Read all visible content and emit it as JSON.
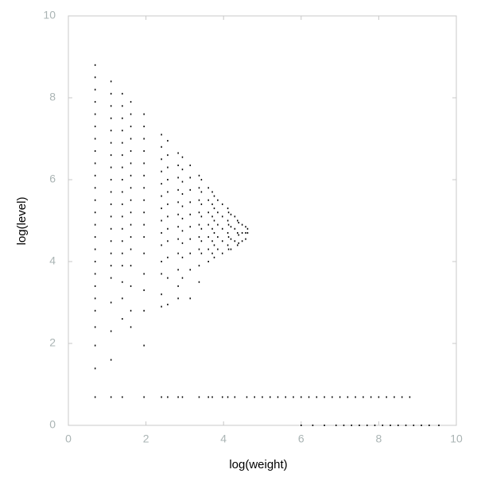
{
  "chart_data": {
    "type": "scatter",
    "xlabel": "log(weight)",
    "ylabel": "log(level)",
    "color": "#000000",
    "xlim": [
      0,
      10
    ],
    "ylim": [
      0,
      10
    ],
    "xticks": [
      0,
      2,
      4,
      6,
      8,
      10
    ],
    "yticks": [
      0,
      2,
      4,
      6,
      8,
      10
    ],
    "grid": false,
    "x": [
      0.69,
      0.69,
      0.69,
      0.69,
      0.69,
      0.69,
      0.69,
      0.69,
      0.69,
      0.69,
      0.69,
      0.69,
      0.69,
      0.69,
      0.69,
      0.69,
      0.69,
      0.69,
      0.69,
      0.69,
      0.69,
      0.69,
      0.69,
      0.69,
      0.69,
      1.1,
      1.1,
      1.1,
      1.1,
      1.1,
      1.1,
      1.1,
      1.1,
      1.1,
      1.1,
      1.1,
      1.1,
      1.1,
      1.1,
      1.1,
      1.1,
      1.1,
      1.1,
      1.1,
      1.1,
      1.1,
      1.39,
      1.39,
      1.39,
      1.39,
      1.39,
      1.39,
      1.39,
      1.39,
      1.39,
      1.39,
      1.39,
      1.39,
      1.39,
      1.39,
      1.39,
      1.39,
      1.39,
      1.39,
      1.39,
      1.61,
      1.61,
      1.61,
      1.61,
      1.61,
      1.61,
      1.61,
      1.61,
      1.61,
      1.61,
      1.61,
      1.61,
      1.61,
      1.61,
      1.61,
      1.61,
      1.61,
      1.95,
      1.95,
      1.95,
      1.95,
      1.95,
      1.95,
      1.95,
      1.95,
      1.95,
      1.95,
      1.95,
      1.95,
      1.95,
      1.95,
      1.95,
      1.95,
      1.95,
      2.4,
      2.4,
      2.4,
      2.4,
      2.4,
      2.4,
      2.4,
      2.4,
      2.4,
      2.4,
      2.4,
      2.4,
      2.4,
      2.4,
      2.4,
      2.56,
      2.56,
      2.56,
      2.56,
      2.56,
      2.56,
      2.56,
      2.56,
      2.56,
      2.56,
      2.56,
      2.56,
      2.56,
      2.83,
      2.83,
      2.83,
      2.83,
      2.83,
      2.83,
      2.83,
      2.83,
      2.83,
      2.83,
      2.83,
      2.83,
      2.83,
      2.94,
      2.94,
      2.94,
      2.94,
      2.94,
      2.94,
      2.94,
      2.94,
      2.94,
      2.94,
      2.94,
      3.14,
      3.14,
      3.14,
      3.14,
      3.14,
      3.14,
      3.14,
      3.14,
      3.14,
      3.14,
      3.37,
      3.37,
      3.37,
      3.37,
      3.37,
      3.37,
      3.37,
      3.37,
      3.37,
      3.37,
      3.43,
      3.43,
      3.43,
      3.43,
      3.43,
      3.43,
      3.43,
      3.61,
      3.61,
      3.61,
      3.61,
      3.61,
      3.61,
      3.61,
      3.61,
      3.71,
      3.71,
      3.71,
      3.71,
      3.71,
      3.71,
      3.71,
      3.76,
      3.76,
      3.76,
      3.76,
      3.76,
      3.76,
      3.85,
      3.85,
      3.85,
      3.85,
      3.85,
      3.97,
      3.97,
      3.97,
      3.97,
      3.97,
      3.97,
      4.11,
      4.11,
      4.11,
      4.11,
      4.11,
      4.13,
      4.13,
      4.13,
      4.13,
      4.19,
      4.19,
      4.19,
      4.19,
      4.29,
      4.29,
      4.29,
      4.29,
      4.36,
      4.36,
      4.36,
      4.39,
      4.39,
      4.39,
      4.48,
      4.48,
      4.48,
      4.57,
      4.57,
      4.57,
      4.62,
      4.62,
      4.6,
      4.8,
      5.0,
      5.2,
      5.4,
      5.6,
      5.8,
      6.0,
      6.2,
      6.4,
      6.6,
      6.8,
      7.0,
      7.2,
      7.4,
      7.6,
      7.8,
      8.0,
      8.2,
      8.4,
      8.6,
      8.8,
      6.0,
      6.3,
      6.6,
      6.9,
      7.1,
      7.3,
      7.5,
      7.7,
      7.9,
      8.1,
      8.3,
      8.5,
      8.7,
      8.9,
      9.1,
      9.3,
      9.55
    ],
    "values": [
      8.8,
      8.5,
      8.2,
      7.9,
      7.6,
      7.3,
      7.0,
      6.7,
      6.4,
      6.1,
      5.8,
      5.5,
      5.2,
      4.9,
      4.6,
      4.3,
      4.0,
      3.7,
      3.4,
      3.1,
      2.8,
      2.4,
      1.95,
      1.39,
      0.69,
      8.4,
      8.1,
      7.8,
      7.5,
      7.2,
      6.9,
      6.6,
      6.3,
      6.0,
      5.7,
      5.4,
      5.1,
      4.8,
      4.5,
      4.2,
      3.9,
      3.6,
      3.0,
      2.3,
      1.6,
      0.69,
      8.1,
      7.8,
      7.5,
      7.2,
      6.9,
      6.6,
      6.3,
      6.0,
      5.7,
      5.4,
      5.1,
      4.8,
      4.5,
      4.2,
      3.9,
      3.5,
      3.1,
      2.6,
      0.69,
      7.9,
      7.6,
      7.3,
      7.0,
      6.7,
      6.4,
      6.1,
      5.8,
      5.5,
      5.2,
      4.9,
      4.6,
      4.3,
      3.9,
      3.4,
      2.8,
      2.4,
      7.6,
      7.3,
      7.0,
      6.7,
      6.4,
      6.1,
      5.8,
      5.5,
      5.2,
      4.9,
      4.6,
      4.2,
      3.7,
      3.3,
      2.8,
      1.95,
      0.69,
      7.1,
      6.8,
      6.5,
      6.2,
      5.9,
      5.6,
      5.3,
      5.0,
      4.7,
      4.4,
      4.0,
      3.7,
      3.2,
      2.9,
      0.69,
      6.95,
      6.6,
      6.3,
      6.0,
      5.7,
      5.4,
      5.1,
      4.8,
      4.5,
      4.1,
      3.6,
      2.95,
      0.69,
      6.65,
      6.35,
      6.05,
      5.75,
      5.45,
      5.15,
      4.85,
      4.55,
      4.2,
      3.8,
      3.4,
      3.1,
      0.69,
      6.55,
      6.25,
      5.95,
      5.65,
      5.35,
      5.05,
      4.75,
      4.45,
      4.1,
      3.6,
      0.69,
      6.35,
      6.05,
      5.75,
      5.45,
      5.15,
      4.85,
      4.55,
      4.2,
      3.8,
      3.1,
      6.1,
      5.8,
      5.5,
      5.2,
      4.9,
      4.6,
      4.3,
      3.9,
      3.5,
      0.69,
      6.0,
      5.7,
      5.4,
      5.1,
      4.8,
      4.5,
      4.2,
      5.8,
      5.5,
      5.2,
      4.9,
      4.6,
      4.3,
      4.0,
      0.69,
      5.7,
      5.4,
      5.1,
      4.8,
      4.5,
      4.2,
      0.69,
      5.6,
      5.3,
      5.0,
      4.7,
      4.4,
      4.1,
      5.5,
      5.2,
      4.9,
      4.6,
      4.3,
      5.4,
      5.1,
      4.8,
      4.5,
      4.2,
      0.69,
      5.3,
      5.0,
      4.7,
      4.4,
      0.69,
      5.2,
      4.9,
      4.6,
      4.3,
      5.15,
      4.85,
      4.55,
      4.3,
      5.1,
      4.8,
      4.5,
      0.69,
      5.0,
      4.7,
      4.4,
      4.95,
      4.65,
      4.45,
      4.9,
      4.7,
      4.5,
      4.85,
      4.7,
      4.55,
      4.8,
      4.7,
      0.69,
      0.69,
      0.69,
      0.69,
      0.69,
      0.69,
      0.69,
      0.69,
      0.69,
      0.69,
      0.69,
      0.69,
      0.69,
      0.69,
      0.69,
      0.69,
      0.69,
      0.69,
      0.69,
      0.69,
      0.69,
      0.69,
      0,
      0,
      0,
      0,
      0,
      0,
      0,
      0,
      0,
      0,
      0,
      0,
      0,
      0,
      0,
      0,
      0
    ]
  }
}
